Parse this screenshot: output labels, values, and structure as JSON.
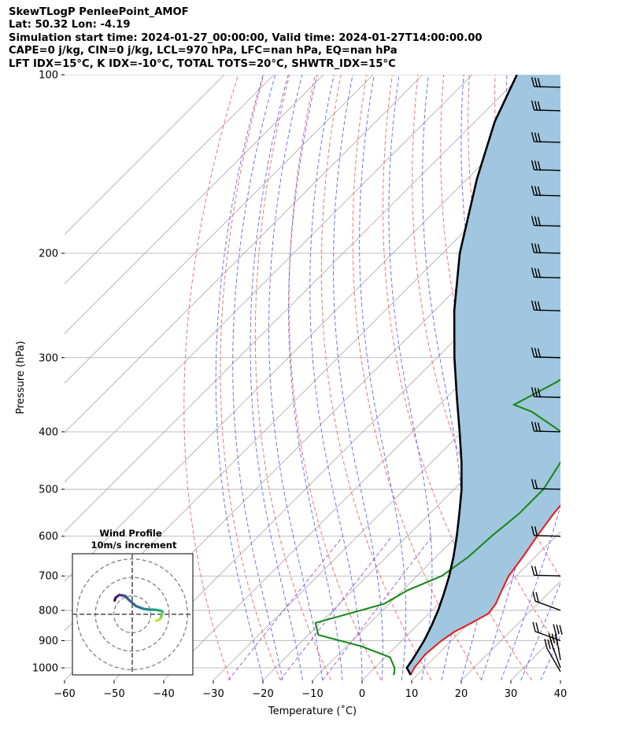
{
  "title_lines": [
    "SkewTLogP PenleePoint_AMOF",
    "Lat: 50.32   Lon: -4.19",
    "Simulation start time: 2024-01-27_00:00:00, Valid time: 2024-01-27T14:00:00.00",
    "CAPE=0 j/kg, CIN=0 j/kg, LCL=970 hPa, LFC=nan hPa, EQ=nan hPa",
    "LFT IDX=15°C, K IDX=-10°C, TOTAL TOTS=20°C, SHWTR_IDX=15°C"
  ],
  "inset": {
    "title_line1": "Wind Profile",
    "title_line2": "10m/s increment"
  },
  "chart_data": {
    "type": "line",
    "skew": "skew-T log-P",
    "xlabel": "Temperature (˚C)",
    "ylabel": "Pressure (hPa)",
    "xlim": [
      -60,
      40
    ],
    "ylim": [
      1050,
      100
    ],
    "y_scale": "log",
    "x_ticks": [
      "−60",
      "−50",
      "−40",
      "−30",
      "−20",
      "−10",
      "0",
      "10",
      "20",
      "30",
      "40"
    ],
    "x_tick_values": [
      -60,
      -50,
      -40,
      -30,
      -20,
      -10,
      0,
      10,
      20,
      30,
      40
    ],
    "y_ticks": [
      "1000",
      "900",
      "800",
      "700",
      "600",
      "500",
      "400",
      "300",
      "200",
      "100"
    ],
    "y_tick_values": [
      1000,
      900,
      800,
      700,
      600,
      500,
      400,
      300,
      200,
      100
    ],
    "grid": true,
    "colors": {
      "temperature": "#e8191a",
      "dewpoint": "#118811",
      "parcel": "#000000",
      "cape_fill": "#a1c6df",
      "dry_adiabat": "#f06464",
      "moist_adiabat": "#5a64f0",
      "mixing_ratio": "#9c4cd4",
      "isotherm": "#aaaaaa"
    },
    "series": [
      {
        "role": "temperature",
        "points": [
          [
            8.7,
            1028
          ],
          [
            8.0,
            1000
          ],
          [
            7.5,
            950
          ],
          [
            8.0,
            900
          ],
          [
            8.8,
            870
          ],
          [
            10.5,
            840
          ],
          [
            12.0,
            810
          ],
          [
            11.5,
            780
          ],
          [
            10.0,
            740
          ],
          [
            8.5,
            700
          ],
          [
            7.5,
            650
          ],
          [
            6.2,
            600
          ],
          [
            5.0,
            550
          ],
          [
            4.2,
            500
          ],
          [
            3.5,
            450
          ],
          [
            3.0,
            420
          ],
          [
            1.5,
            380
          ],
          [
            0.2,
            360
          ],
          [
            -3.0,
            330
          ],
          [
            -6.5,
            300
          ],
          [
            -10.0,
            270
          ],
          [
            -13.5,
            250
          ],
          [
            -18.0,
            230
          ],
          [
            -19.5,
            210
          ],
          [
            -20.5,
            200
          ],
          [
            -20.5,
            190
          ],
          [
            -19.5,
            180
          ],
          [
            -18.0,
            170
          ],
          [
            -13.0,
            155
          ],
          [
            -7.0,
            140
          ],
          [
            -4.5,
            130
          ],
          [
            -3.5,
            120
          ],
          [
            -3.5,
            110
          ],
          [
            -4.0,
            100
          ]
        ]
      },
      {
        "role": "dewpoint",
        "points": [
          [
            5.2,
            1028
          ],
          [
            5.0,
            1020
          ],
          [
            4.0,
            1000
          ],
          [
            1.0,
            960
          ],
          [
            -7.0,
            920
          ],
          [
            -18.0,
            880
          ],
          [
            -21.0,
            840
          ],
          [
            -11.0,
            780
          ],
          [
            -9.0,
            740
          ],
          [
            -5.0,
            700
          ],
          [
            -3.5,
            650
          ],
          [
            -3.0,
            600
          ],
          [
            -2.0,
            550
          ],
          [
            -2.0,
            500
          ],
          [
            -4.0,
            450
          ],
          [
            -6.0,
            420
          ],
          [
            -10.0,
            400
          ],
          [
            -20.0,
            370
          ],
          [
            -25.0,
            360
          ],
          [
            -21.0,
            330
          ],
          [
            -19.0,
            310
          ],
          [
            -21.0,
            290
          ],
          [
            -23.0,
            265
          ],
          [
            -27.0,
            240
          ],
          [
            -29.5,
            220
          ],
          [
            -30.0,
            200
          ],
          [
            -30.5,
            190
          ],
          [
            -27.0,
            175
          ],
          [
            -21.0,
            165
          ],
          [
            -17.5,
            150
          ],
          [
            -19.0,
            140
          ],
          [
            -24.0,
            130
          ],
          [
            -25.5,
            120
          ],
          [
            -26.0,
            110
          ],
          [
            -25.0,
            100
          ]
        ]
      },
      {
        "role": "parcel",
        "points": [
          [
            8.7,
            1028
          ],
          [
            6.5,
            1000
          ],
          [
            6.0,
            970
          ],
          [
            4.5,
            900
          ],
          [
            3.0,
            850
          ],
          [
            1.2,
            800
          ],
          [
            -1.0,
            750
          ],
          [
            -3.5,
            700
          ],
          [
            -6.5,
            650
          ],
          [
            -10.0,
            600
          ],
          [
            -14.0,
            550
          ],
          [
            -18.5,
            500
          ],
          [
            -24.0,
            450
          ],
          [
            -30.5,
            400
          ],
          [
            -38.0,
            350
          ],
          [
            -46.5,
            300
          ],
          [
            -56.0,
            250
          ],
          [
            -66.5,
            200
          ],
          [
            -78.0,
            150
          ],
          [
            -86.0,
            120
          ],
          [
            -91.0,
            100
          ]
        ]
      }
    ],
    "wind_barb_pressures": [
      1015,
      1000,
      970,
      900,
      800,
      700,
      600,
      500,
      400,
      350,
      300,
      250,
      220,
      200,
      180,
      160,
      145,
      130,
      115,
      105
    ],
    "hodograph": {
      "rings_ms": [
        10,
        20,
        30
      ],
      "max_ms": 32
    }
  }
}
